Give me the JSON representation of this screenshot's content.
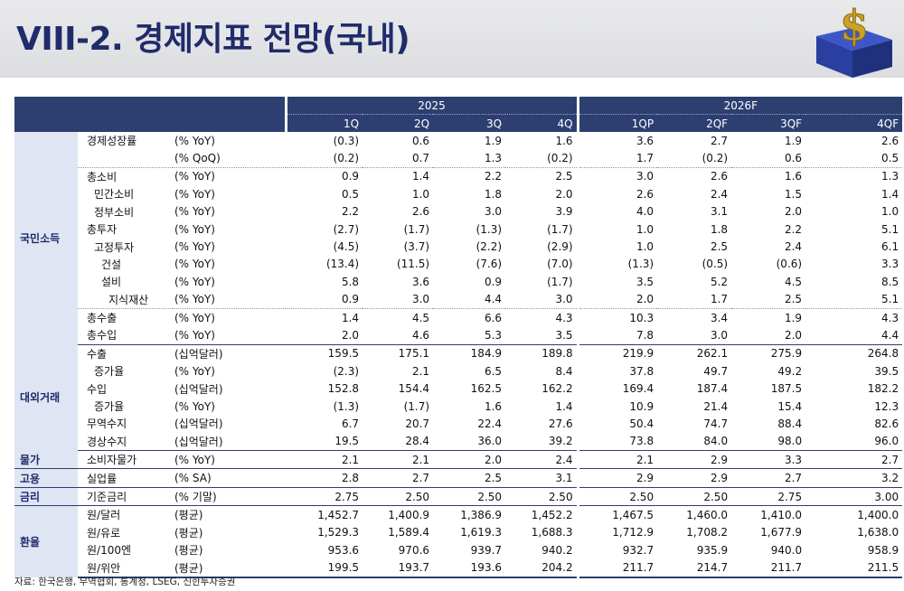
{
  "header": {
    "title": "VIII-2. 경제지표 전망(국내)"
  },
  "table": {
    "years": [
      "2025",
      "2026F"
    ],
    "quarters": [
      "1Q",
      "2Q",
      "3Q",
      "4Q",
      "1QP",
      "2QF",
      "3QF",
      "4QF"
    ],
    "rows": [
      {
        "cat": "",
        "item": "경제성장률",
        "unit": "(% YoY)",
        "values": [
          "(0.3)",
          "0.6",
          "1.9",
          "1.6",
          "3.6",
          "2.7",
          "1.9",
          "2.6"
        ]
      },
      {
        "cat": "",
        "item": "",
        "unit": "(% QoQ)",
        "values": [
          "(0.2)",
          "0.7",
          "1.3",
          "(0.2)",
          "1.7",
          "(0.2)",
          "0.6",
          "0.5"
        ]
      },
      {
        "cat": "",
        "item": "총소비",
        "unit": "(% YoY)",
        "values": [
          "0.9",
          "1.4",
          "2.2",
          "2.5",
          "3.0",
          "2.6",
          "1.6",
          "1.3"
        ]
      },
      {
        "cat": "",
        "item": "민간소비",
        "unit": "(% YoY)",
        "values": [
          "0.5",
          "1.0",
          "1.8",
          "2.0",
          "2.6",
          "2.4",
          "1.5",
          "1.4"
        ]
      },
      {
        "cat": "",
        "item": "정부소비",
        "unit": "(% YoY)",
        "values": [
          "2.2",
          "2.6",
          "3.0",
          "3.9",
          "4.0",
          "3.1",
          "2.0",
          "1.0"
        ]
      },
      {
        "cat": "국민소득",
        "item": "총투자",
        "unit": "(% YoY)",
        "values": [
          "(2.7)",
          "(1.7)",
          "(1.3)",
          "(1.7)",
          "1.0",
          "1.8",
          "2.2",
          "5.1"
        ]
      },
      {
        "cat": "",
        "item": "고정투자",
        "unit": "(% YoY)",
        "values": [
          "(4.5)",
          "(3.7)",
          "(2.2)",
          "(2.9)",
          "1.0",
          "2.5",
          "2.4",
          "6.1"
        ]
      },
      {
        "cat": "",
        "item": "건설",
        "unit": "(% YoY)",
        "values": [
          "(13.4)",
          "(11.5)",
          "(7.6)",
          "(7.0)",
          "(1.3)",
          "(0.5)",
          "(0.6)",
          "3.3"
        ]
      },
      {
        "cat": "",
        "item": "설비",
        "unit": "(% YoY)",
        "values": [
          "5.8",
          "3.6",
          "0.9",
          "(1.7)",
          "3.5",
          "5.2",
          "4.5",
          "8.5"
        ]
      },
      {
        "cat": "",
        "item": "지식재산",
        "unit": "(% YoY)",
        "values": [
          "0.9",
          "3.0",
          "4.4",
          "3.0",
          "2.0",
          "1.7",
          "2.5",
          "5.1"
        ]
      },
      {
        "cat": "",
        "item": "총수출",
        "unit": "(% YoY)",
        "values": [
          "1.4",
          "4.5",
          "6.6",
          "4.3",
          "10.3",
          "3.4",
          "1.9",
          "4.3"
        ]
      },
      {
        "cat": "",
        "item": "총수입",
        "unit": "(% YoY)",
        "values": [
          "2.0",
          "4.6",
          "5.3",
          "3.5",
          "7.8",
          "3.0",
          "2.0",
          "4.4"
        ]
      },
      {
        "cat": "",
        "item": "수출",
        "unit": "(십억달러)",
        "values": [
          "159.5",
          "175.1",
          "184.9",
          "189.8",
          "219.9",
          "262.1",
          "275.9",
          "264.8"
        ]
      },
      {
        "cat": "",
        "item": "증가율",
        "unit": "(% YoY)",
        "values": [
          "(2.3)",
          "2.1",
          "6.5",
          "8.4",
          "37.8",
          "49.7",
          "49.2",
          "39.5"
        ]
      },
      {
        "cat": "대외거래",
        "item": "수입",
        "unit": "(십억달러)",
        "values": [
          "152.8",
          "154.4",
          "162.5",
          "162.2",
          "169.4",
          "187.4",
          "187.5",
          "182.2"
        ]
      },
      {
        "cat": "",
        "item": "증가율",
        "unit": "(% YoY)",
        "values": [
          "(1.3)",
          "(1.7)",
          "1.6",
          "1.4",
          "10.9",
          "21.4",
          "15.4",
          "12.3"
        ]
      },
      {
        "cat": "",
        "item": "무역수지",
        "unit": "(십억달러)",
        "values": [
          "6.7",
          "20.7",
          "22.4",
          "27.6",
          "50.4",
          "74.7",
          "88.4",
          "82.6"
        ]
      },
      {
        "cat": "",
        "item": "경상수지",
        "unit": "(십억달러)",
        "values": [
          "19.5",
          "28.4",
          "36.0",
          "39.2",
          "73.8",
          "84.0",
          "98.0",
          "96.0"
        ]
      },
      {
        "cat": "물가",
        "item": "소비자물가",
        "unit": "(% YoY)",
        "values": [
          "2.1",
          "2.1",
          "2.0",
          "2.4",
          "2.1",
          "2.9",
          "3.3",
          "2.7"
        ]
      },
      {
        "cat": "고용",
        "item": "실업률",
        "unit": "(% SA)",
        "values": [
          "2.8",
          "2.7",
          "2.5",
          "3.1",
          "2.9",
          "2.9",
          "2.7",
          "3.2"
        ]
      },
      {
        "cat": "금리",
        "item": "기준금리",
        "unit": "(% 기말)",
        "values": [
          "2.75",
          "2.50",
          "2.50",
          "2.50",
          "2.50",
          "2.50",
          "2.75",
          "3.00"
        ]
      },
      {
        "cat": "",
        "item": "원/달러",
        "unit": "(평균)",
        "values": [
          "1,452.7",
          "1,400.9",
          "1,386.9",
          "1,452.2",
          "1,467.5",
          "1,460.0",
          "1,410.0",
          "1,400.0"
        ]
      },
      {
        "cat": "환율",
        "item": "원/유로",
        "unit": "(평균)",
        "values": [
          "1,529.3",
          "1,589.4",
          "1,619.3",
          "1,688.3",
          "1,712.9",
          "1,708.2",
          "1,677.9",
          "1,638.0"
        ]
      },
      {
        "cat": "",
        "item": "원/100엔",
        "unit": "(평균)",
        "values": [
          "953.6",
          "970.6",
          "939.7",
          "940.2",
          "932.7",
          "935.9",
          "940.0",
          "958.9"
        ]
      },
      {
        "cat": "",
        "item": "원/위안",
        "unit": "(평균)",
        "values": [
          "199.5",
          "193.7",
          "193.6",
          "204.2",
          "211.7",
          "214.7",
          "211.7",
          "211.5"
        ]
      }
    ]
  },
  "footer": {
    "source": "자료: 한국은행, 무역협회, 통계청, LSEG, 신한투자증권"
  }
}
